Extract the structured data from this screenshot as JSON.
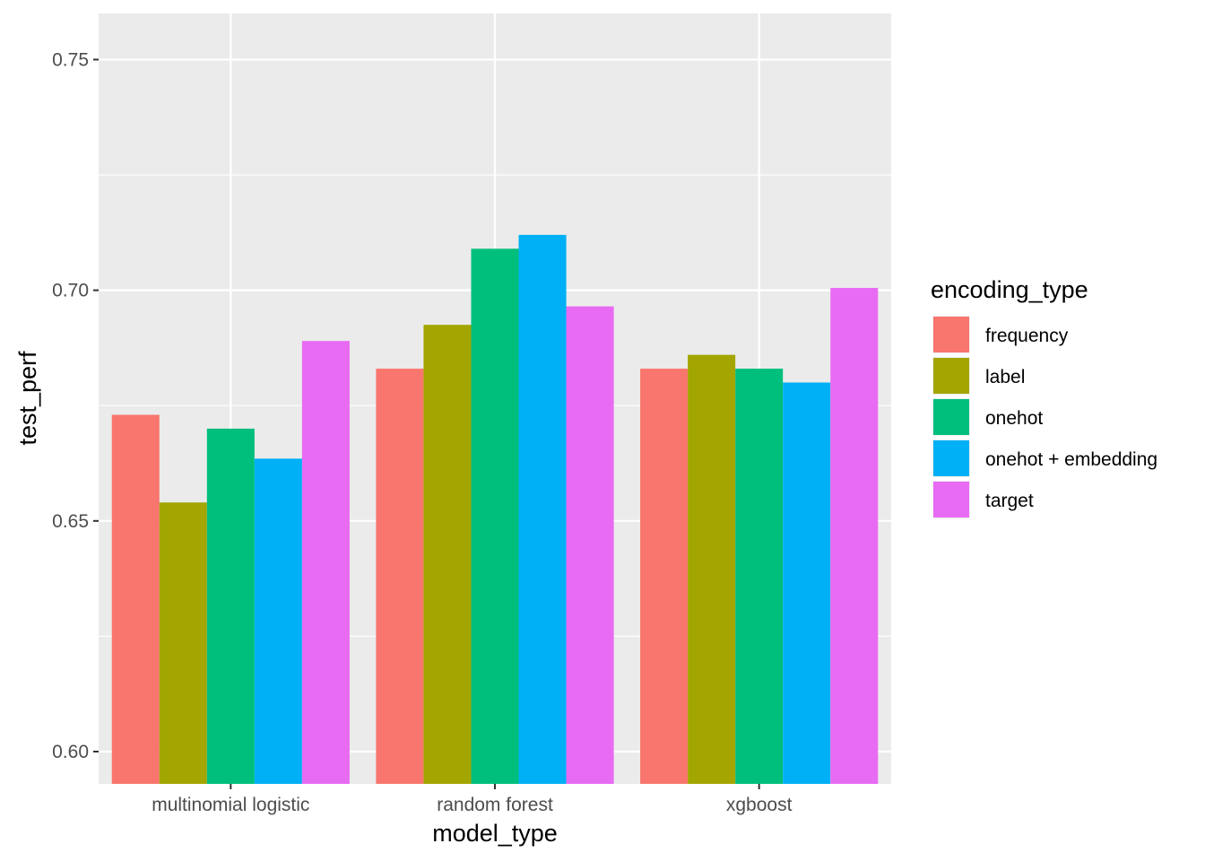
{
  "chart_data": {
    "type": "bar",
    "xlabel": "model_type",
    "ylabel": "test_perf",
    "categories": [
      "multinomial logistic",
      "random forest",
      "xgboost"
    ],
    "ylim": [
      0.593,
      0.76
    ],
    "yticks": [
      0.6,
      0.65,
      0.7,
      0.75
    ],
    "ytick_labels": [
      "0.60",
      "0.65",
      "0.70",
      "0.75"
    ],
    "grid": true,
    "legend": {
      "title": "encoding_type",
      "position": "right"
    },
    "series": [
      {
        "name": "frequency",
        "color": "#F8766D",
        "values": [
          0.673,
          0.683,
          0.683
        ]
      },
      {
        "name": "label",
        "color": "#A3A500",
        "values": [
          0.654,
          0.6925,
          0.686
        ]
      },
      {
        "name": "onehot",
        "color": "#00BF7D",
        "values": [
          0.67,
          0.709,
          0.683
        ]
      },
      {
        "name": "onehot + embedding",
        "color": "#00B0F6",
        "values": [
          0.6635,
          0.712,
          0.68
        ]
      },
      {
        "name": "target",
        "color": "#E76BF3",
        "values": [
          0.689,
          0.6965,
          0.7005
        ]
      }
    ]
  }
}
